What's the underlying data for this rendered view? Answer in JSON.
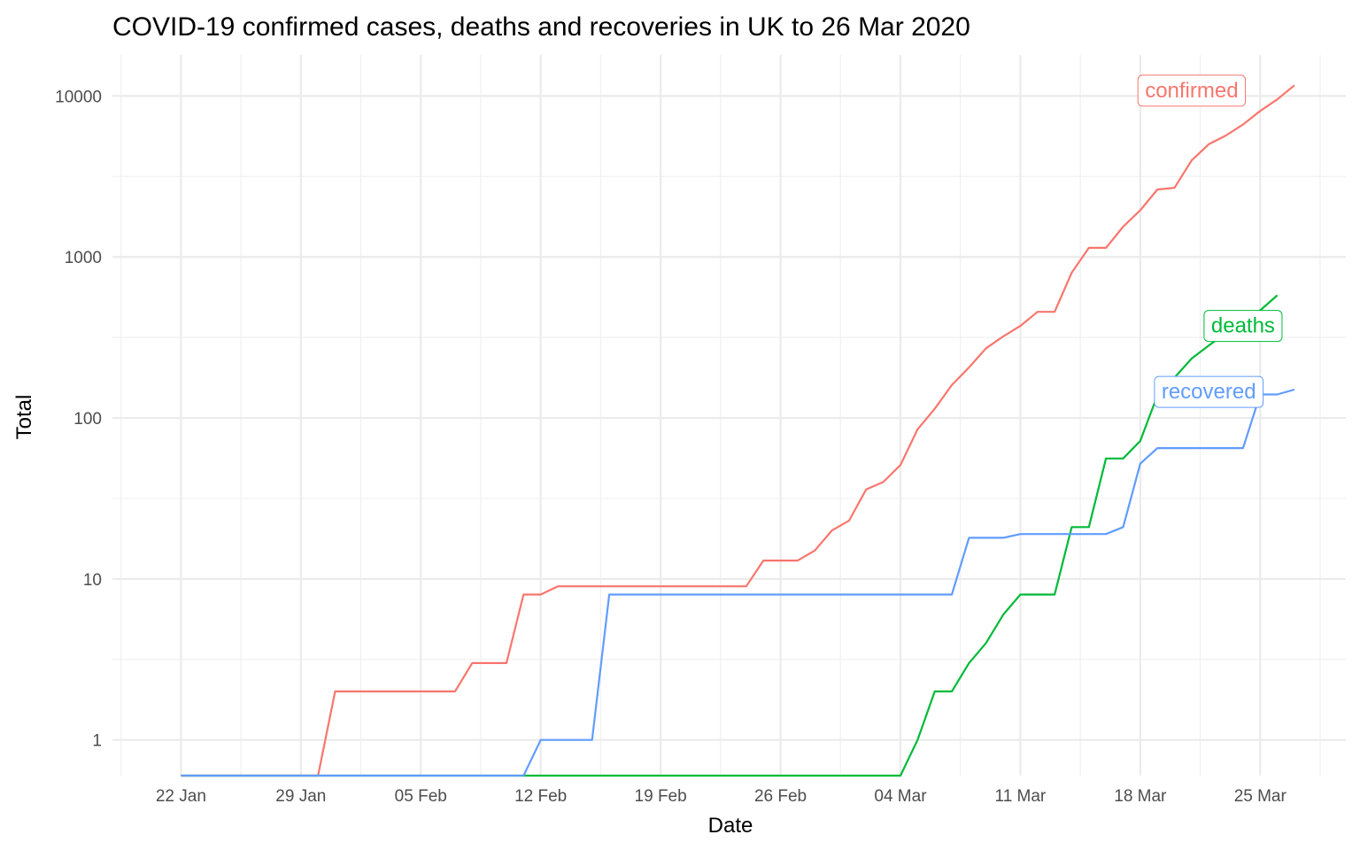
{
  "chart_data": {
    "type": "line",
    "title": "COVID-19 confirmed cases, deaths and recoveries in UK to 26 Mar 2020",
    "xlabel": "Date",
    "ylabel": "Total",
    "x_scale": "date",
    "y_scale": "log10",
    "xlim": [
      "2020-01-18",
      "2020-03-30"
    ],
    "ylim": [
      0.6,
      18000
    ],
    "grid": true,
    "legend": "none (labels at line ends)",
    "x_ticks": [
      {
        "date": "2020-01-22",
        "label": "22 Jan"
      },
      {
        "date": "2020-01-29",
        "label": "29 Jan"
      },
      {
        "date": "2020-02-05",
        "label": "05 Feb"
      },
      {
        "date": "2020-02-12",
        "label": "12 Feb"
      },
      {
        "date": "2020-02-19",
        "label": "19 Feb"
      },
      {
        "date": "2020-02-26",
        "label": "26 Feb"
      },
      {
        "date": "2020-03-04",
        "label": "04 Mar"
      },
      {
        "date": "2020-03-11",
        "label": "11 Mar"
      },
      {
        "date": "2020-03-18",
        "label": "18 Mar"
      },
      {
        "date": "2020-03-25",
        "label": "25 Mar"
      }
    ],
    "y_ticks": [
      {
        "value": 1,
        "label": "1"
      },
      {
        "value": 10,
        "label": "10"
      },
      {
        "value": 100,
        "label": "100"
      },
      {
        "value": 1000,
        "label": "1000"
      },
      {
        "value": 10000,
        "label": "10000"
      }
    ],
    "series": [
      {
        "name": "confirmed",
        "color": "#F8766D",
        "points": [
          [
            "2020-01-22",
            0.6
          ],
          [
            "2020-01-30",
            0.6
          ],
          [
            "2020-01-31",
            2
          ],
          [
            "2020-02-01",
            2
          ],
          [
            "2020-02-02",
            2
          ],
          [
            "2020-02-03",
            2
          ],
          [
            "2020-02-04",
            2
          ],
          [
            "2020-02-05",
            2
          ],
          [
            "2020-02-06",
            2
          ],
          [
            "2020-02-07",
            2
          ],
          [
            "2020-02-08",
            3
          ],
          [
            "2020-02-09",
            3
          ],
          [
            "2020-02-10",
            3
          ],
          [
            "2020-02-11",
            8
          ],
          [
            "2020-02-12",
            8
          ],
          [
            "2020-02-13",
            9
          ],
          [
            "2020-02-14",
            9
          ],
          [
            "2020-02-15",
            9
          ],
          [
            "2020-02-16",
            9
          ],
          [
            "2020-02-17",
            9
          ],
          [
            "2020-02-18",
            9
          ],
          [
            "2020-02-19",
            9
          ],
          [
            "2020-02-20",
            9
          ],
          [
            "2020-02-21",
            9
          ],
          [
            "2020-02-22",
            9
          ],
          [
            "2020-02-23",
            9
          ],
          [
            "2020-02-24",
            9
          ],
          [
            "2020-02-25",
            13
          ],
          [
            "2020-02-26",
            13
          ],
          [
            "2020-02-27",
            13
          ],
          [
            "2020-02-28",
            15
          ],
          [
            "2020-02-29",
            20
          ],
          [
            "2020-03-01",
            23
          ],
          [
            "2020-03-02",
            36
          ],
          [
            "2020-03-03",
            40
          ],
          [
            "2020-03-04",
            51
          ],
          [
            "2020-03-05",
            85
          ],
          [
            "2020-03-06",
            114
          ],
          [
            "2020-03-07",
            160
          ],
          [
            "2020-03-08",
            206
          ],
          [
            "2020-03-09",
            271
          ],
          [
            "2020-03-10",
            321
          ],
          [
            "2020-03-11",
            373
          ],
          [
            "2020-03-12",
            456
          ],
          [
            "2020-03-13",
            456
          ],
          [
            "2020-03-14",
            798
          ],
          [
            "2020-03-15",
            1140
          ],
          [
            "2020-03-16",
            1140
          ],
          [
            "2020-03-17",
            1543
          ],
          [
            "2020-03-18",
            1950
          ],
          [
            "2020-03-19",
            2626
          ],
          [
            "2020-03-20",
            2689
          ],
          [
            "2020-03-21",
            3983
          ],
          [
            "2020-03-22",
            5018
          ],
          [
            "2020-03-23",
            5683
          ],
          [
            "2020-03-24",
            6650
          ],
          [
            "2020-03-25",
            8077
          ],
          [
            "2020-03-26",
            9529
          ],
          [
            "2020-03-27",
            11658
          ]
        ]
      },
      {
        "name": "deaths",
        "color": "#00BA38",
        "points": [
          [
            "2020-01-22",
            0.6
          ],
          [
            "2020-03-04",
            0.6
          ],
          [
            "2020-03-05",
            1
          ],
          [
            "2020-03-06",
            2
          ],
          [
            "2020-03-07",
            2
          ],
          [
            "2020-03-08",
            3
          ],
          [
            "2020-03-09",
            4
          ],
          [
            "2020-03-10",
            6
          ],
          [
            "2020-03-11",
            8
          ],
          [
            "2020-03-12",
            8
          ],
          [
            "2020-03-13",
            8
          ],
          [
            "2020-03-14",
            21
          ],
          [
            "2020-03-15",
            21
          ],
          [
            "2020-03-16",
            56
          ],
          [
            "2020-03-17",
            56
          ],
          [
            "2020-03-18",
            72
          ],
          [
            "2020-03-19",
            138
          ],
          [
            "2020-03-20",
            178
          ],
          [
            "2020-03-21",
            234
          ],
          [
            "2020-03-22",
            282
          ],
          [
            "2020-03-23",
            336
          ],
          [
            "2020-03-24",
            423
          ],
          [
            "2020-03-25",
            466
          ],
          [
            "2020-03-26",
            578
          ]
        ]
      },
      {
        "name": "recovered",
        "color": "#619CFF",
        "points": [
          [
            "2020-01-22",
            0.6
          ],
          [
            "2020-02-11",
            0.6
          ],
          [
            "2020-02-12",
            1
          ],
          [
            "2020-02-13",
            1
          ],
          [
            "2020-02-14",
            1
          ],
          [
            "2020-02-15",
            1
          ],
          [
            "2020-02-16",
            8
          ],
          [
            "2020-03-06",
            8
          ],
          [
            "2020-03-07",
            8
          ],
          [
            "2020-03-08",
            18
          ],
          [
            "2020-03-09",
            18
          ],
          [
            "2020-03-10",
            18
          ],
          [
            "2020-03-11",
            19
          ],
          [
            "2020-03-12",
            19
          ],
          [
            "2020-03-13",
            19
          ],
          [
            "2020-03-14",
            19
          ],
          [
            "2020-03-15",
            19
          ],
          [
            "2020-03-16",
            19
          ],
          [
            "2020-03-17",
            21
          ],
          [
            "2020-03-18",
            52
          ],
          [
            "2020-03-19",
            65
          ],
          [
            "2020-03-20",
            65
          ],
          [
            "2020-03-21",
            65
          ],
          [
            "2020-03-22",
            65
          ],
          [
            "2020-03-23",
            65
          ],
          [
            "2020-03-24",
            65
          ],
          [
            "2020-03-25",
            140
          ],
          [
            "2020-03-26",
            140
          ],
          [
            "2020-03-27",
            150
          ]
        ]
      }
    ],
    "annotations": [
      {
        "text": "confirmed",
        "series": "confirmed",
        "at": [
          "2020-03-21",
          11000
        ]
      },
      {
        "text": "deaths",
        "series": "deaths",
        "at": [
          "2020-03-24",
          380
        ]
      },
      {
        "text": "recovered",
        "series": "recovered",
        "at": [
          "2020-03-22",
          148
        ]
      }
    ]
  }
}
